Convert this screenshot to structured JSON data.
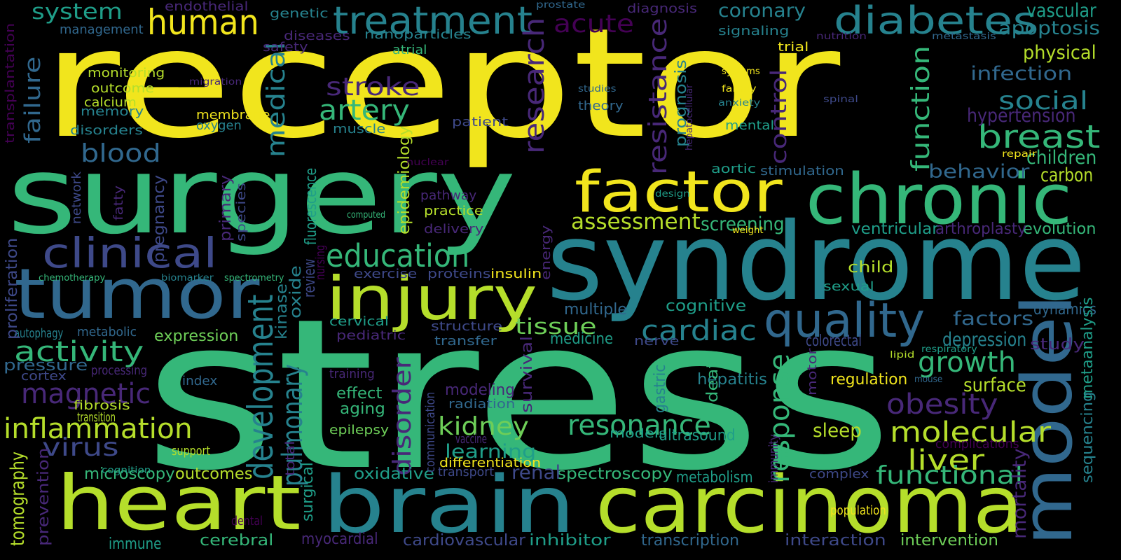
{
  "colors": {
    "background": "#000000",
    "palette": {
      "yellow": "#f1e51d",
      "yellow_green": "#b5de2b",
      "light_green": "#6ece58",
      "green": "#35b779",
      "teal_green": "#1f9e89",
      "teal": "#26828e",
      "blue_teal": "#31688e",
      "blue": "#3e4989",
      "indigo": "#482878",
      "purple": "#440154"
    }
  },
  "words": [
    {
      "text": "receptor",
      "color": "yellow"
    },
    {
      "text": "stress",
      "color": "green"
    },
    {
      "text": "surgery",
      "color": "green"
    },
    {
      "text": "syndrome",
      "color": "teal"
    },
    {
      "text": "tumor",
      "color": "blue_teal"
    },
    {
      "text": "heart",
      "color": "yellow_green"
    },
    {
      "text": "brain",
      "color": "teal"
    },
    {
      "text": "carcinoma",
      "color": "yellow_green"
    },
    {
      "text": "model",
      "color": "blue_teal"
    },
    {
      "text": "chronic",
      "color": "green"
    },
    {
      "text": "factor",
      "color": "yellow"
    },
    {
      "text": "injury",
      "color": "yellow_green"
    },
    {
      "text": "quality",
      "color": "blue_teal"
    },
    {
      "text": "clinical",
      "color": "blue"
    },
    {
      "text": "diabetes",
      "color": "teal"
    },
    {
      "text": "treatment",
      "color": "teal"
    },
    {
      "text": "human",
      "color": "yellow"
    },
    {
      "text": "breast",
      "color": "green"
    },
    {
      "text": "education",
      "color": "green"
    },
    {
      "text": "cardiac",
      "color": "teal"
    },
    {
      "text": "resonance",
      "color": "green"
    },
    {
      "text": "inflammation",
      "color": "yellow_green"
    },
    {
      "text": "development",
      "color": "teal"
    },
    {
      "text": "response",
      "color": "green"
    },
    {
      "text": "molecular",
      "color": "yellow_green"
    },
    {
      "text": "growth",
      "color": "green"
    },
    {
      "text": "obesity",
      "color": "indigo"
    },
    {
      "text": "magnetic",
      "color": "indigo"
    },
    {
      "text": "activity",
      "color": "green"
    },
    {
      "text": "liver",
      "color": "yellow_green"
    },
    {
      "text": "functional",
      "color": "green"
    },
    {
      "text": "kidney",
      "color": "light_green"
    },
    {
      "text": "pulmonary",
      "color": "teal"
    },
    {
      "text": "disorder",
      "color": "indigo"
    },
    {
      "text": "artery",
      "color": "green"
    },
    {
      "text": "stroke",
      "color": "indigo"
    },
    {
      "text": "social",
      "color": "teal"
    },
    {
      "text": "function",
      "color": "green"
    },
    {
      "text": "research",
      "color": "indigo"
    },
    {
      "text": "medical",
      "color": "teal"
    },
    {
      "text": "resistance",
      "color": "indigo"
    },
    {
      "text": "control",
      "color": "indigo"
    },
    {
      "text": "failure",
      "color": "blue_teal"
    },
    {
      "text": "blood",
      "color": "blue_teal"
    },
    {
      "text": "system",
      "color": "teal_green"
    },
    {
      "text": "virus",
      "color": "blue"
    },
    {
      "text": "tissue",
      "color": "light_green"
    },
    {
      "text": "assessment",
      "color": "yellow_green"
    },
    {
      "text": "acute",
      "color": "purple"
    },
    {
      "text": "apoptosis",
      "color": "teal"
    },
    {
      "text": "coronary",
      "color": "teal"
    },
    {
      "text": "vascular",
      "color": "teal_green"
    },
    {
      "text": "infection",
      "color": "blue_teal"
    },
    {
      "text": "physical",
      "color": "yellow_green"
    },
    {
      "text": "hypertension",
      "color": "indigo"
    },
    {
      "text": "children",
      "color": "green"
    },
    {
      "text": "behavior",
      "color": "blue_teal"
    },
    {
      "text": "carbon",
      "color": "yellow_green"
    },
    {
      "text": "evolution",
      "color": "green"
    },
    {
      "text": "ventricular",
      "color": "teal_green"
    },
    {
      "text": "arthroplasty",
      "color": "indigo"
    },
    {
      "text": "screening",
      "color": "green"
    },
    {
      "text": "factors",
      "color": "blue_teal"
    },
    {
      "text": "depression",
      "color": "teal"
    },
    {
      "text": "study",
      "color": "indigo"
    },
    {
      "text": "dynamics",
      "color": "blue_teal"
    },
    {
      "text": "surface",
      "color": "yellow_green"
    },
    {
      "text": "regulation",
      "color": "yellow"
    },
    {
      "text": "sequencing",
      "color": "teal"
    },
    {
      "text": "metaanalysis",
      "color": "teal_green"
    },
    {
      "text": "mortality",
      "color": "indigo"
    },
    {
      "text": "complications",
      "color": "purple"
    },
    {
      "text": "intervention",
      "color": "light_green"
    },
    {
      "text": "interaction",
      "color": "blue"
    },
    {
      "text": "transcription",
      "color": "blue_teal"
    },
    {
      "text": "cardiovascular",
      "color": "blue"
    },
    {
      "text": "inhibitor",
      "color": "teal_green"
    },
    {
      "text": "myocardial",
      "color": "indigo"
    },
    {
      "text": "cerebral",
      "color": "green"
    },
    {
      "text": "immune",
      "color": "teal_green"
    },
    {
      "text": "outcomes",
      "color": "yellow_green"
    },
    {
      "text": "microscopy",
      "color": "green"
    },
    {
      "text": "tomography",
      "color": "yellow_green"
    },
    {
      "text": "prevention",
      "color": "indigo"
    },
    {
      "text": "spectroscopy",
      "color": "green"
    },
    {
      "text": "metabolism",
      "color": "teal_green"
    },
    {
      "text": "oxidative",
      "color": "teal_green"
    },
    {
      "text": "renal",
      "color": "blue"
    },
    {
      "text": "learning",
      "color": "teal_green"
    },
    {
      "text": "models",
      "color": "teal_green"
    },
    {
      "text": "ultrasound",
      "color": "teal_green"
    },
    {
      "text": "sleep",
      "color": "yellow_green"
    },
    {
      "text": "complex",
      "color": "blue"
    },
    {
      "text": "hepatitis",
      "color": "teal"
    },
    {
      "text": "gastric",
      "color": "teal"
    },
    {
      "text": "death",
      "color": "green"
    },
    {
      "text": "immunity",
      "color": "indigo"
    },
    {
      "text": "motor",
      "color": "indigo"
    },
    {
      "text": "colorectal",
      "color": "blue"
    },
    {
      "text": "sexual",
      "color": "teal_green"
    },
    {
      "text": "child",
      "color": "yellow_green"
    },
    {
      "text": "cognitive",
      "color": "teal_green"
    },
    {
      "text": "nerve",
      "color": "blue"
    },
    {
      "text": "medicine",
      "color": "teal_green"
    },
    {
      "text": "transfer",
      "color": "blue_teal"
    },
    {
      "text": "structure",
      "color": "blue"
    },
    {
      "text": "pediatric",
      "color": "indigo"
    },
    {
      "text": "cervical",
      "color": "teal_green"
    },
    {
      "text": "multiple",
      "color": "blue_teal"
    },
    {
      "text": "survival",
      "color": "indigo"
    },
    {
      "text": "modeling",
      "color": "indigo"
    },
    {
      "text": "radiation",
      "color": "blue_teal"
    },
    {
      "text": "effect",
      "color": "green"
    },
    {
      "text": "aging",
      "color": "green"
    },
    {
      "text": "epilepsy",
      "color": "light_green"
    },
    {
      "text": "training",
      "color": "indigo"
    },
    {
      "text": "vaccine",
      "color": "indigo"
    },
    {
      "text": "communication",
      "color": "blue"
    },
    {
      "text": "differentiation",
      "color": "yellow"
    },
    {
      "text": "transport",
      "color": "blue"
    },
    {
      "text": "surgical",
      "color": "teal_green"
    },
    {
      "text": "total",
      "color": "indigo"
    },
    {
      "text": "dental",
      "color": "purple"
    },
    {
      "text": "population",
      "color": "yellow"
    },
    {
      "text": "mouse",
      "color": "blue_teal"
    },
    {
      "text": "lipid",
      "color": "yellow_green"
    },
    {
      "text": "respiratory",
      "color": "teal_green"
    },
    {
      "text": "expression",
      "color": "light_green"
    },
    {
      "text": "metabolic",
      "color": "blue_teal"
    },
    {
      "text": "autophagy",
      "color": "teal"
    },
    {
      "text": "proliferation",
      "color": "blue"
    },
    {
      "text": "pressure",
      "color": "blue_teal"
    },
    {
      "text": "cortex",
      "color": "blue"
    },
    {
      "text": "index",
      "color": "blue_teal"
    },
    {
      "text": "processing",
      "color": "indigo"
    },
    {
      "text": "fibrosis",
      "color": "yellow_green"
    },
    {
      "text": "transition",
      "color": "yellow_green"
    },
    {
      "text": "support",
      "color": "yellow_green"
    },
    {
      "text": "cognition",
      "color": "teal_green"
    },
    {
      "text": "chemotherapy",
      "color": "green"
    },
    {
      "text": "biomarker",
      "color": "teal"
    },
    {
      "text": "spectrometry",
      "color": "green"
    },
    {
      "text": "exercise",
      "color": "blue"
    },
    {
      "text": "proteins",
      "color": "blue"
    },
    {
      "text": "insulin",
      "color": "yellow"
    },
    {
      "text": "review",
      "color": "blue"
    },
    {
      "text": "nursing",
      "color": "purple"
    },
    {
      "text": "oxide",
      "color": "teal"
    },
    {
      "text": "kinase",
      "color": "teal"
    },
    {
      "text": "fluorescence",
      "color": "teal_green"
    },
    {
      "text": "computed",
      "color": "green"
    },
    {
      "text": "pathway",
      "color": "indigo"
    },
    {
      "text": "practice",
      "color": "yellow_green"
    },
    {
      "text": "delivery",
      "color": "indigo"
    },
    {
      "text": "energy",
      "color": "indigo"
    },
    {
      "text": "epidemiology",
      "color": "yellow_green"
    },
    {
      "text": "nuclear",
      "color": "purple"
    },
    {
      "text": "network",
      "color": "blue"
    },
    {
      "text": "fatty",
      "color": "indigo"
    },
    {
      "text": "species",
      "color": "blue"
    },
    {
      "text": "primary",
      "color": "indigo"
    },
    {
      "text": "pregnancy",
      "color": "blue"
    },
    {
      "text": "memory",
      "color": "teal"
    },
    {
      "text": "disorders",
      "color": "teal"
    },
    {
      "text": "outcome",
      "color": "yellow_green"
    },
    {
      "text": "calcium",
      "color": "yellow_green"
    },
    {
      "text": "monitoring",
      "color": "yellow_green"
    },
    {
      "text": "membrane",
      "color": "yellow"
    },
    {
      "text": "oxygen",
      "color": "teal"
    },
    {
      "text": "muscle",
      "color": "teal"
    },
    {
      "text": "patient",
      "color": "blue"
    },
    {
      "text": "migration",
      "color": "indigo"
    },
    {
      "text": "transplantation",
      "color": "purple"
    },
    {
      "text": "management",
      "color": "blue_teal"
    },
    {
      "text": "endothelial",
      "color": "indigo"
    },
    {
      "text": "genetic",
      "color": "teal"
    },
    {
      "text": "diseases",
      "color": "indigo"
    },
    {
      "text": "nanoparticles",
      "color": "teal"
    },
    {
      "text": "safety",
      "color": "indigo"
    },
    {
      "text": "atrial",
      "color": "green"
    },
    {
      "text": "prostate",
      "color": "blue_teal"
    },
    {
      "text": "diagnosis",
      "color": "indigo"
    },
    {
      "text": "signaling",
      "color": "teal"
    },
    {
      "text": "trial",
      "color": "yellow"
    },
    {
      "text": "nutrition",
      "color": "indigo"
    },
    {
      "text": "metastasis",
      "color": "blue_teal"
    },
    {
      "text": "systems",
      "color": "yellow"
    },
    {
      "text": "family",
      "color": "yellow"
    },
    {
      "text": "anxiety",
      "color": "teal"
    },
    {
      "text": "studies",
      "color": "blue_teal"
    },
    {
      "text": "theory",
      "color": "blue_teal"
    },
    {
      "text": "prognosis",
      "color": "teal"
    },
    {
      "text": "hepatocellular",
      "color": "indigo"
    },
    {
      "text": "spinal",
      "color": "blue"
    },
    {
      "text": "mental",
      "color": "teal_green"
    },
    {
      "text": "repair",
      "color": "yellow"
    },
    {
      "text": "aortic",
      "color": "teal_green"
    },
    {
      "text": "stimulation",
      "color": "blue_teal"
    },
    {
      "text": "design",
      "color": "teal_green"
    },
    {
      "text": "weight",
      "color": "yellow"
    }
  ]
}
